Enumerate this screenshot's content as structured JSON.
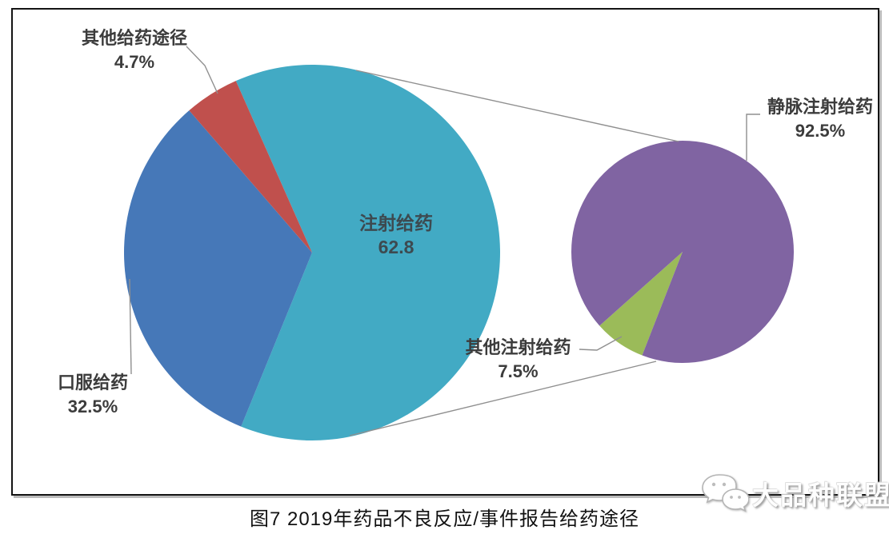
{
  "figure": {
    "caption": "图7 2019年药品不良反应/事件报告给药途径",
    "watermark": "大品种联盟"
  },
  "chart_data": [
    {
      "type": "pie",
      "name": "main-pie",
      "title": "",
      "total": 100,
      "unit": "%",
      "direction": "clockwise",
      "start_angle_deg": -23.9,
      "legend": false,
      "slices": [
        {
          "label": "注射给药",
          "value": 62.8,
          "value_text": "62.8",
          "color": "#42AAC4",
          "label_position": "inside"
        },
        {
          "label": "口服给药",
          "value": 32.5,
          "value_text": "32.5%",
          "color": "#4678B8",
          "label_position": "outside-bottom-left"
        },
        {
          "label": "其他给药途径",
          "value": 4.7,
          "value_text": "4.7%",
          "color": "#C0504D",
          "label_position": "outside-top-left"
        }
      ]
    },
    {
      "type": "pie",
      "name": "secondary-pie",
      "subset_of": "注射给药",
      "total": 100,
      "unit": "%",
      "direction": "clockwise",
      "start_angle_deg": 201.3,
      "legend": false,
      "slices": [
        {
          "label": "其他注射给药",
          "value": 7.5,
          "value_text": "7.5%",
          "color": "#9BBB59",
          "label_position": "outside-bottom-left"
        },
        {
          "label": "静脉注射给药",
          "value": 92.5,
          "value_text": "92.5%",
          "color": "#8064A2",
          "label_position": "outside-top-right"
        }
      ]
    }
  ],
  "colors": {
    "injection_teal": "#42AAC4",
    "oral_blue": "#4678B8",
    "other_red": "#C0504D",
    "iv_purple": "#8064A2",
    "other_injection_green": "#9BBB59",
    "leader_line": "#8f8f8f",
    "label_text": "#3c3c3c",
    "frame_border": "#141414"
  }
}
